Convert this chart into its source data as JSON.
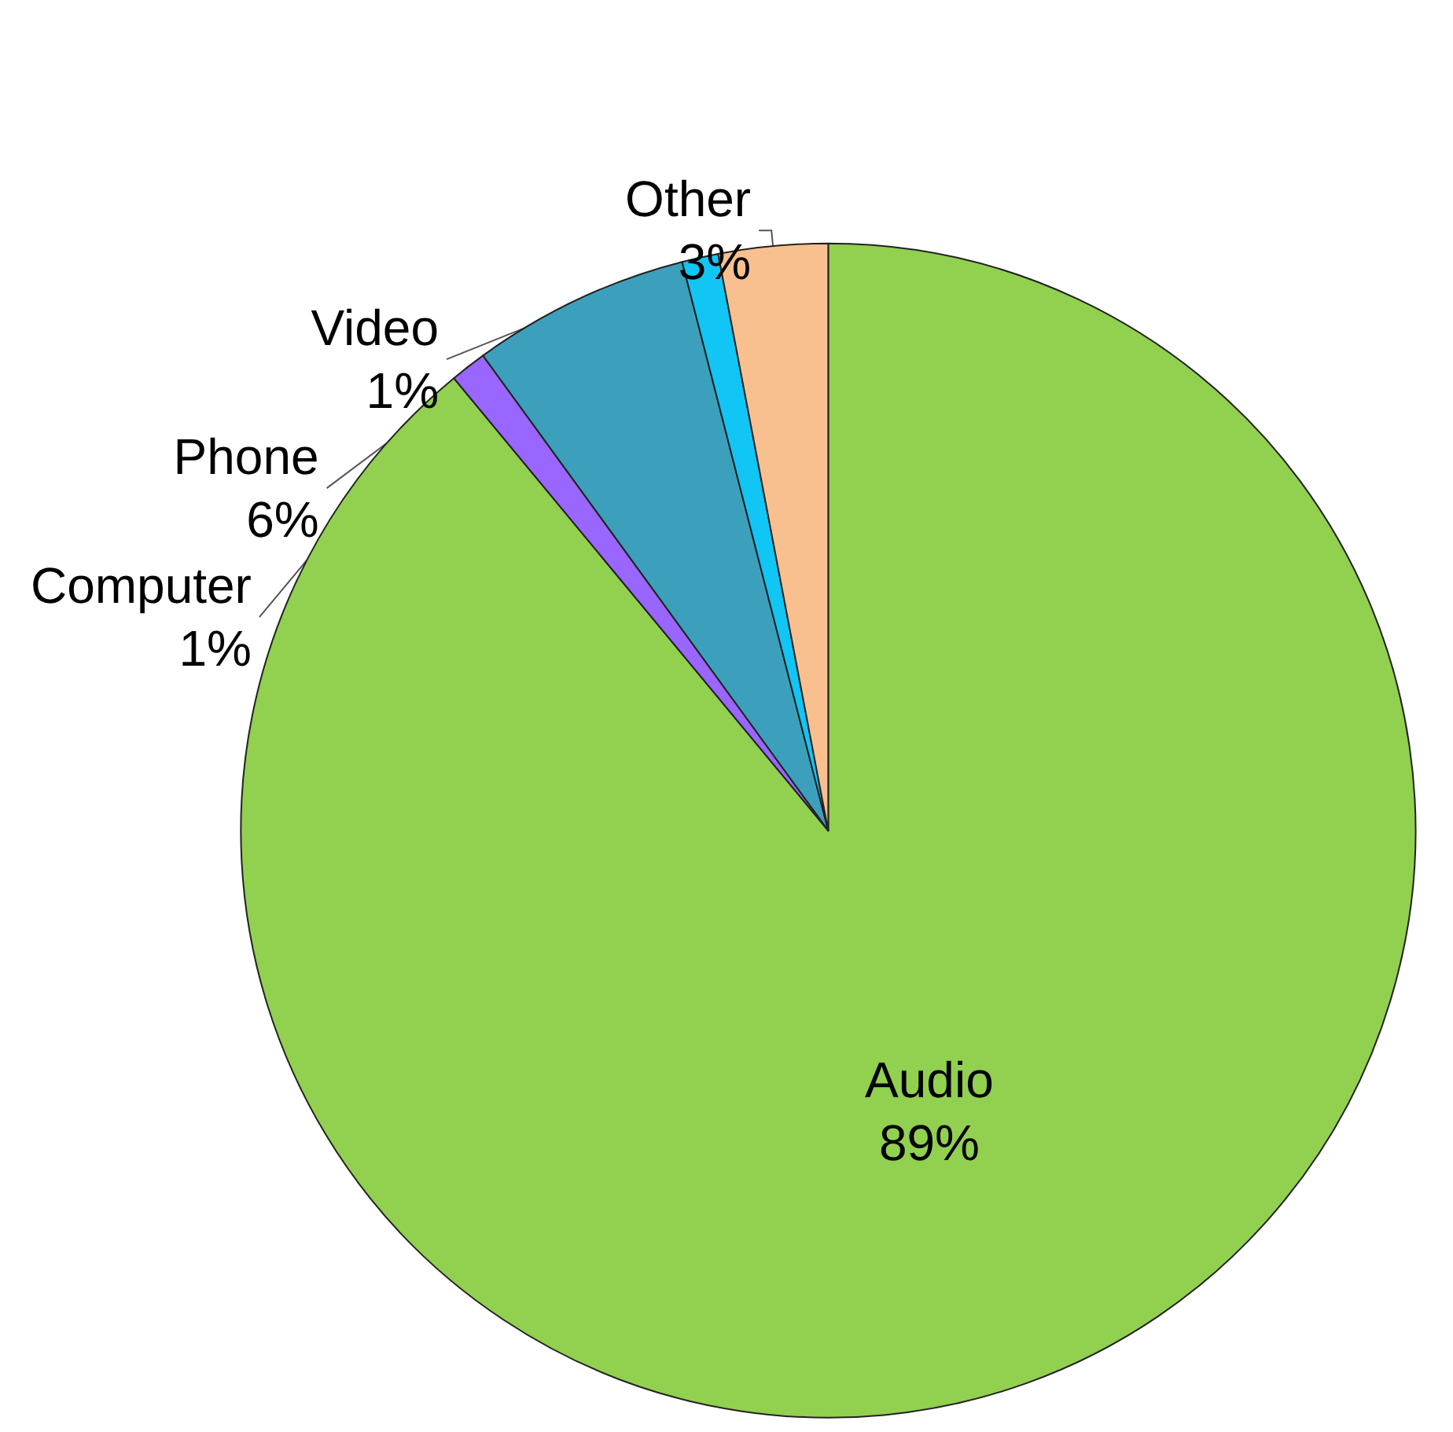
{
  "chart_data": {
    "type": "pie",
    "categories": [
      "Audio",
      "Computer",
      "Phone",
      "Video",
      "Other"
    ],
    "values": [
      89,
      1,
      6,
      1,
      3
    ],
    "value_labels": [
      "89%",
      "1%",
      "6%",
      "1%",
      "3%"
    ],
    "colors": [
      "#92d050",
      "#9966ff",
      "#3ca0bc",
      "#11c5f5",
      "#f9c08f"
    ]
  }
}
